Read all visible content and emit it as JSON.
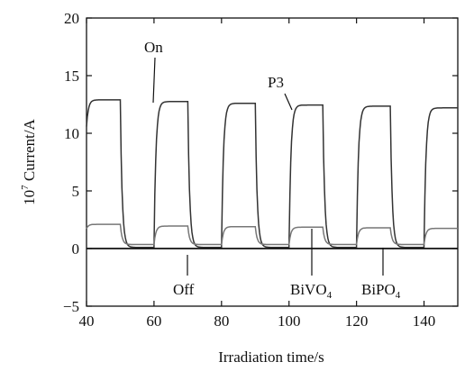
{
  "chart_data": {
    "type": "line",
    "xlabel": "Irradiation time/s",
    "ylabel_sup": "7",
    "ylabel_pre": "10",
    "ylabel_post": " Current/A",
    "xlim": [
      40,
      150
    ],
    "ylim": [
      -5,
      20
    ],
    "xticks": [
      40,
      60,
      80,
      100,
      120,
      140
    ],
    "yticks": [
      -5,
      0,
      5,
      10,
      15,
      20
    ],
    "grid": false,
    "on_times": [
      40,
      60,
      80,
      100,
      120,
      140
    ],
    "off_times": [
      50,
      70,
      90,
      110,
      130,
      150
    ],
    "series": [
      {
        "name": "P3",
        "on_levels": [
          12.9,
          12.75,
          12.6,
          12.45,
          12.35,
          12.2
        ],
        "dark_level": 0.1,
        "color": "#333333"
      },
      {
        "name": "BiVO4",
        "on_levels": [
          2.1,
          1.95,
          1.9,
          1.85,
          1.8,
          1.75
        ],
        "dark_level": 0.35,
        "color": "#777777"
      },
      {
        "name": "BiPO4",
        "on_levels": [
          0.0,
          0.0,
          0.0,
          0.0,
          0.0,
          0.0
        ],
        "dark_level": 0.0,
        "color": "#111111"
      }
    ],
    "annotations": {
      "on": {
        "text": "On"
      },
      "off": {
        "text": "Off"
      },
      "p3": {
        "text": "P3"
      },
      "bivo4": {
        "main": "BiVO",
        "sub": "4"
      },
      "bipo4": {
        "main": "BiPO",
        "sub": "4"
      }
    }
  }
}
